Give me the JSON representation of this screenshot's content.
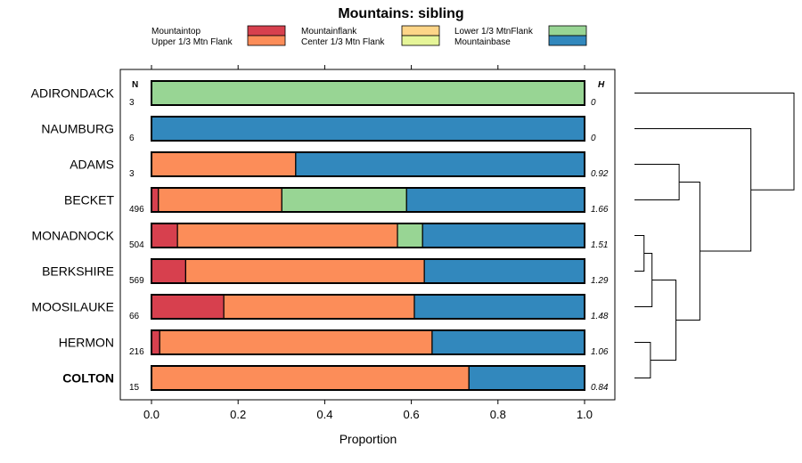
{
  "chart_data": {
    "type": "bar",
    "orientation": "horizontal",
    "stacked": true,
    "title": "Mountains: sibling",
    "xlabel": "Proportion",
    "ylabel": "",
    "xlim": [
      0,
      1
    ],
    "xticks": [
      "0.0",
      "0.2",
      "0.4",
      "0.6",
      "0.8",
      "1.0"
    ],
    "legend": [
      {
        "name": "Mountaintop",
        "color": "#d7404e"
      },
      {
        "name": "Mountainflank",
        "color": "#fdd588"
      },
      {
        "name": "Lower 1/3 MtnFlank",
        "color": "#98d594"
      },
      {
        "name": "Upper 1/3 Mtn Flank",
        "color": "#fc8d59"
      },
      {
        "name": "Center 1/3 Mtn Flank",
        "color": "#e6f598"
      },
      {
        "name": "Mountainbase",
        "color": "#3288bd"
      }
    ],
    "series_order": [
      "Mountaintop",
      "Upper 1/3 Mtn Flank",
      "Mountainflank",
      "Center 1/3 Mtn Flank",
      "Lower 1/3 MtnFlank",
      "Mountainbase"
    ],
    "n_header": "N",
    "h_header": "H",
    "rows": [
      {
        "label": "ADIRONDACK",
        "n": "3",
        "h": "0",
        "bold": false,
        "values": {
          "Mountaintop": 0,
          "Upper 1/3 Mtn Flank": 0,
          "Mountainflank": 0,
          "Center 1/3 Mtn Flank": 0,
          "Lower 1/3 MtnFlank": 1.0,
          "Mountainbase": 0
        }
      },
      {
        "label": "NAUMBURG",
        "n": "6",
        "h": "0",
        "bold": false,
        "values": {
          "Mountaintop": 0,
          "Upper 1/3 Mtn Flank": 0,
          "Mountainflank": 0,
          "Center 1/3 Mtn Flank": 0,
          "Lower 1/3 MtnFlank": 0,
          "Mountainbase": 1.0
        }
      },
      {
        "label": "ADAMS",
        "n": "3",
        "h": "0.92",
        "bold": false,
        "values": {
          "Mountaintop": 0,
          "Upper 1/3 Mtn Flank": 0.333,
          "Mountainflank": 0,
          "Center 1/3 Mtn Flank": 0,
          "Lower 1/3 MtnFlank": 0,
          "Mountainbase": 0.667
        }
      },
      {
        "label": "BECKET",
        "n": "496",
        "h": "1.66",
        "bold": false,
        "values": {
          "Mountaintop": 0.016,
          "Upper 1/3 Mtn Flank": 0.285,
          "Mountainflank": 0,
          "Center 1/3 Mtn Flank": 0,
          "Lower 1/3 MtnFlank": 0.288,
          "Mountainbase": 0.411
        }
      },
      {
        "label": "MONADNOCK",
        "n": "504",
        "h": "1.51",
        "bold": false,
        "values": {
          "Mountaintop": 0.06,
          "Upper 1/3 Mtn Flank": 0.508,
          "Mountainflank": 0,
          "Center 1/3 Mtn Flank": 0,
          "Lower 1/3 MtnFlank": 0.058,
          "Mountainbase": 0.374
        }
      },
      {
        "label": "BERKSHIRE",
        "n": "569",
        "h": "1.29",
        "bold": false,
        "values": {
          "Mountaintop": 0.079,
          "Upper 1/3 Mtn Flank": 0.551,
          "Mountainflank": 0,
          "Center 1/3 Mtn Flank": 0,
          "Lower 1/3 MtnFlank": 0,
          "Mountainbase": 0.37
        }
      },
      {
        "label": "MOOSILAUKE",
        "n": "66",
        "h": "1.48",
        "bold": false,
        "values": {
          "Mountaintop": 0.167,
          "Upper 1/3 Mtn Flank": 0.44,
          "Mountainflank": 0,
          "Center 1/3 Mtn Flank": 0,
          "Lower 1/3 MtnFlank": 0,
          "Mountainbase": 0.393
        }
      },
      {
        "label": "HERMON",
        "n": "216",
        "h": "1.06",
        "bold": false,
        "values": {
          "Mountaintop": 0.019,
          "Upper 1/3 Mtn Flank": 0.629,
          "Mountainflank": 0,
          "Center 1/3 Mtn Flank": 0,
          "Lower 1/3 MtnFlank": 0,
          "Mountainbase": 0.352
        }
      },
      {
        "label": "COLTON",
        "n": "15",
        "h": "0.84",
        "bold": true,
        "values": {
          "Mountaintop": 0,
          "Upper 1/3 Mtn Flank": 0.733,
          "Mountainflank": 0,
          "Center 1/3 Mtn Flank": 0,
          "Lower 1/3 MtnFlank": 0,
          "Mountainbase": 0.267
        }
      }
    ],
    "dendrogram": {
      "leaf_order": [
        "ADIRONDACK",
        "NAUMBURG",
        "ADAMS",
        "BECKET",
        "MONADNOCK",
        "BERKSHIRE",
        "MOOSILAUKE",
        "HERMON",
        "COLTON"
      ],
      "merges": [
        {
          "left": "MONADNOCK",
          "right": "BERKSHIRE",
          "height": 0.06
        },
        {
          "left": "HERMON",
          "right": "COLTON",
          "height": 0.1
        },
        {
          "left": "MONADNOCK+BERKSHIRE",
          "right": "MOOSILAUKE",
          "height": 0.11
        },
        {
          "left": "ADAMS",
          "right": "BECKET",
          "height": 0.28
        },
        {
          "left": "MONADNOCK+BERKSHIRE+MOOSILAUKE",
          "right": "HERMON+COLTON",
          "height": 0.26
        },
        {
          "left": "ADAMS+BECKET",
          "right": "MONADNOCK+BERKSHIRE+MOOSILAUKE+HERMON+COLTON",
          "height": 0.41
        },
        {
          "left": "NAUMBURG",
          "right": "ADAMS+BECKET+MONADNOCK+BERKSHIRE+MOOSILAUKE+HERMON+COLTON",
          "height": 0.73
        },
        {
          "left": "ADIRONDACK",
          "right": "NAUMBURG+ADAMS+BECKET+MONADNOCK+BERKSHIRE+MOOSILAUKE+HERMON+COLTON",
          "height": 1.0
        }
      ]
    }
  }
}
